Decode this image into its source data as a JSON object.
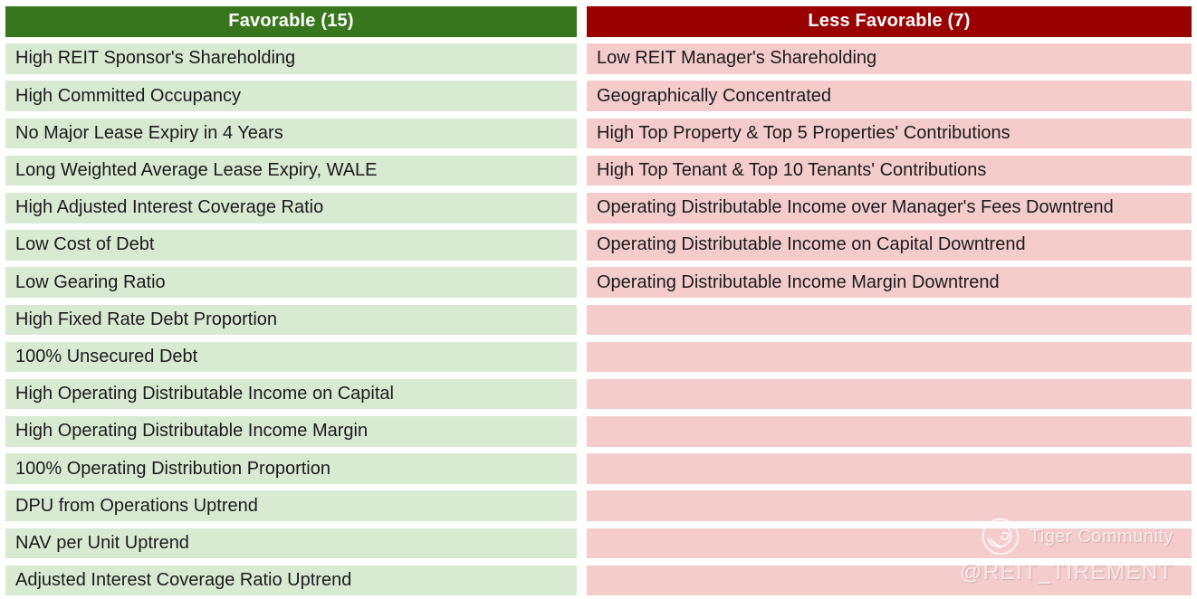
{
  "page": {
    "background_color": "#FFFFFF",
    "text_color": "#1B1B1B"
  },
  "table": {
    "row_count": 15,
    "columns": [
      {
        "id": "favorable",
        "header": "Favorable (15)",
        "header_bg": "#38761D",
        "header_text_color": "#FFFFFF",
        "row_bg": "#D9EAD3",
        "items": [
          "High REIT Sponsor's Shareholding",
          "High Committed Occupancy",
          "No Major Lease Expiry in 4 Years",
          "Long Weighted Average Lease Expiry, WALE",
          "High Adjusted Interest Coverage Ratio",
          "Low Cost of Debt",
          "Low Gearing Ratio",
          "High Fixed Rate Debt Proportion",
          "100% Unsecured Debt",
          "High Operating Distributable Income on Capital",
          "High Operating Distributable Income Margin",
          "100% Operating Distribution Proportion",
          "DPU from Operations Uptrend",
          "NAV per Unit Uptrend",
          "Adjusted Interest Coverage Ratio Uptrend"
        ]
      },
      {
        "id": "less_favorable",
        "header": "Less Favorable (7)",
        "header_bg": "#990000",
        "header_text_color": "#FFFFFF",
        "row_bg": "#F4CCCC",
        "items": [
          "Low REIT Manager's Shareholding",
          "Geographically Concentrated",
          "High Top Property & Top 5 Properties' Contributions",
          "High Top Tenant & Top 10 Tenants' Contributions",
          "Operating Distributable Income over Manager's Fees Downtrend",
          "Operating Distributable Income on Capital Downtrend",
          "Operating Distributable Income Margin Downtrend"
        ]
      }
    ]
  },
  "watermark": {
    "community": "Tiger Community",
    "handle": "@REIT_TIREMENT",
    "logo": "tiger-logo-icon",
    "color": "rgba(255,255,255,0.68)"
  }
}
